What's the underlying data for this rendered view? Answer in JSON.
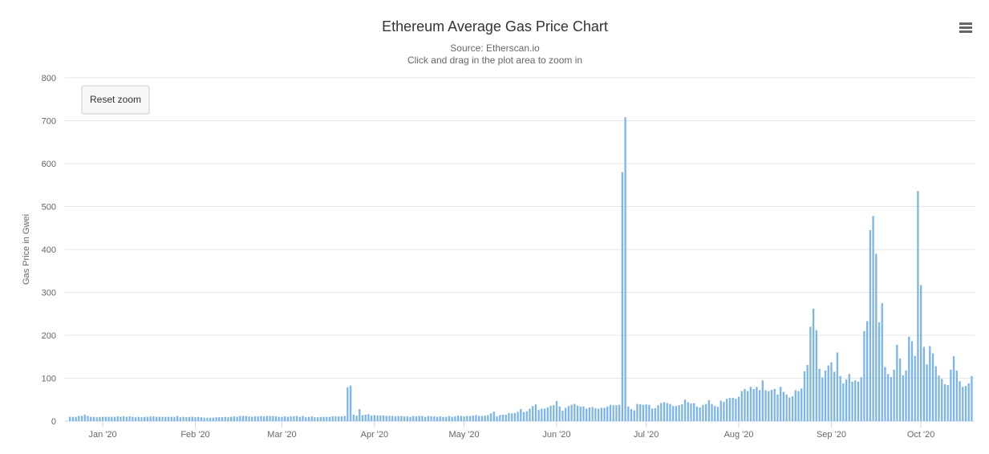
{
  "title": "Ethereum Average Gas Price Chart",
  "subtitle_source": "Source: Etherscan.io",
  "subtitle_hint": "Click and drag in the plot area to zoom in",
  "reset_zoom_label": "Reset zoom",
  "menu_icon": "hamburger-menu-icon",
  "colors": {
    "bar": "#7cb5ec",
    "grid": "#e6e6e6",
    "axis_text": "#666666",
    "title": "#333333"
  },
  "chart_data": {
    "type": "bar",
    "title": "Ethereum Average Gas Price Chart",
    "subtitle": "Source: Etherscan.io",
    "ylabel": "Gas Price in Gwei",
    "xlabel": "",
    "ylim": [
      0,
      800
    ],
    "y_ticks": [
      "0",
      "100",
      "200",
      "300",
      "400",
      "500",
      "600",
      "700",
      "800"
    ],
    "x_start_date": "2019-12-21",
    "x_tick_labels": [
      "Jan '20",
      "Feb '20",
      "Mar '20",
      "Apr '20",
      "May '20",
      "Jun '20",
      "Jul '20",
      "Aug '20",
      "Sep '20",
      "Oct '20"
    ],
    "grid": true,
    "legend": "none",
    "values": [
      10,
      10,
      10,
      12,
      12,
      15,
      12,
      10,
      10,
      9,
      10,
      10,
      10,
      10,
      10,
      10,
      11,
      10,
      11,
      10,
      11,
      10,
      9,
      10,
      9,
      10,
      10,
      11,
      11,
      10,
      10,
      10,
      10,
      10,
      10,
      10,
      12,
      9,
      10,
      9,
      10,
      10,
      9,
      10,
      9,
      8,
      8,
      8,
      8,
      9,
      9,
      9,
      10,
      9,
      10,
      11,
      10,
      12,
      12,
      12,
      11,
      10,
      11,
      11,
      12,
      11,
      12,
      12,
      12,
      11,
      10,
      10,
      11,
      10,
      11,
      11,
      12,
      10,
      12,
      9,
      10,
      11,
      9,
      9,
      10,
      10,
      10,
      10,
      11,
      11,
      11,
      11,
      12,
      79,
      83,
      15,
      13,
      28,
      14,
      15,
      16,
      13,
      14,
      13,
      13,
      13,
      12,
      12,
      12,
      11,
      12,
      12,
      11,
      11,
      10,
      12,
      11,
      12,
      12,
      10,
      12,
      11,
      11,
      10,
      11,
      10,
      10,
      12,
      10,
      11,
      13,
      12,
      11,
      12,
      12,
      13,
      14,
      12,
      12,
      13,
      14,
      18,
      22,
      11,
      14,
      15,
      15,
      19,
      18,
      19,
      22,
      28,
      21,
      23,
      29,
      35,
      39,
      26,
      29,
      29,
      32,
      36,
      37,
      47,
      34,
      24,
      31,
      35,
      38,
      40,
      36,
      34,
      34,
      29,
      32,
      33,
      30,
      29,
      31,
      31,
      34,
      38,
      37,
      37,
      38,
      580,
      708,
      34,
      28,
      25,
      40,
      39,
      38,
      39,
      38,
      29,
      30,
      37,
      42,
      44,
      42,
      40,
      35,
      35,
      37,
      39,
      50,
      44,
      41,
      42,
      34,
      32,
      38,
      40,
      49,
      40,
      35,
      33,
      48,
      45,
      52,
      54,
      54,
      52,
      57,
      70,
      75,
      70,
      80,
      75,
      80,
      72,
      95,
      72,
      70,
      73,
      75,
      62,
      80,
      68,
      62,
      55,
      58,
      72,
      70,
      76,
      116,
      131,
      220,
      262,
      212,
      122,
      102,
      118,
      130,
      137,
      115,
      160,
      105,
      88,
      97,
      110,
      92,
      95,
      92,
      102,
      210,
      233,
      445,
      478,
      390,
      230,
      275,
      126,
      110,
      103,
      120,
      178,
      146,
      107,
      118,
      197,
      186,
      152,
      536,
      317,
      173,
      132,
      175,
      158,
      128,
      106,
      98,
      86,
      84,
      120,
      151,
      118,
      93,
      80,
      82,
      88,
      105
    ]
  }
}
